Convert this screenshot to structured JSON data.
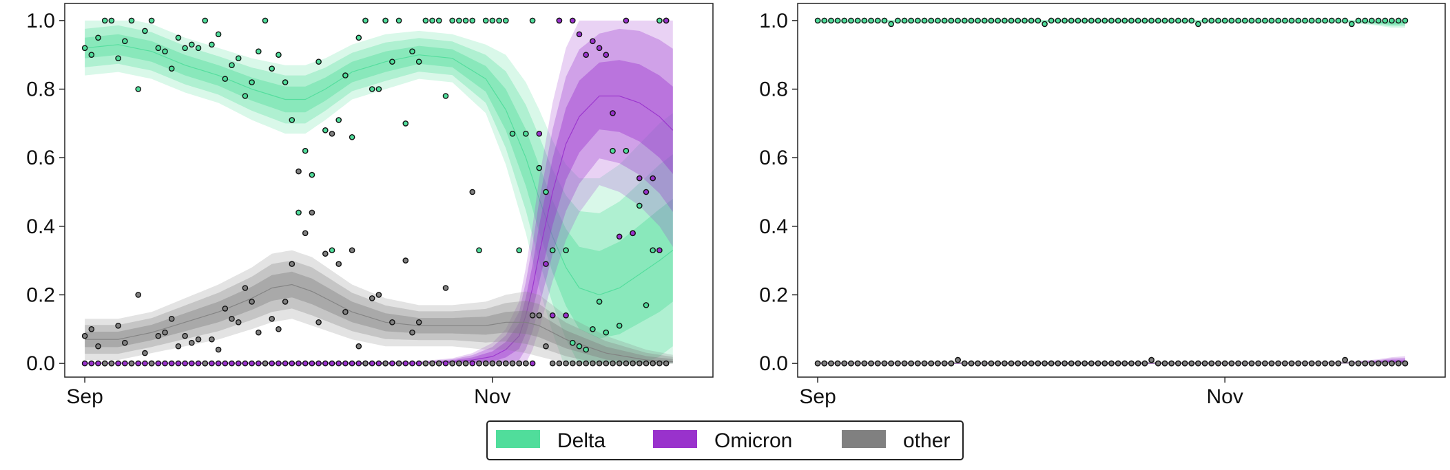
{
  "colors": {
    "Delta": "#50dd9b",
    "Omicron": "#9932cc",
    "other": "#808080",
    "axis": "#222222"
  },
  "legend": {
    "entries": [
      "Delta",
      "Omicron",
      "other"
    ],
    "placement": "bottom-center"
  },
  "chart_data": [
    {
      "type": "line",
      "panel": "left",
      "x_unit": "days since Sep 1",
      "xlim": [
        -3,
        94
      ],
      "ylim": [
        -0.04,
        1.05
      ],
      "yticks": [
        "0.0",
        "0.2",
        "0.4",
        "0.6",
        "0.8",
        "1.0"
      ],
      "xticks": [
        {
          "x": 0,
          "label": "Sep"
        },
        {
          "x": 61,
          "label": "Nov"
        }
      ],
      "grid": false,
      "series": [
        {
          "name": "Delta",
          "x": [
            0,
            5,
            10,
            15,
            20,
            25,
            30,
            33,
            36,
            40,
            45,
            50,
            55,
            60,
            63,
            66,
            68,
            70,
            72,
            74,
            77,
            80,
            83,
            86,
            88
          ],
          "y": [
            0.92,
            0.93,
            0.91,
            0.87,
            0.84,
            0.8,
            0.77,
            0.77,
            0.8,
            0.85,
            0.88,
            0.9,
            0.89,
            0.83,
            0.74,
            0.6,
            0.48,
            0.37,
            0.28,
            0.22,
            0.2,
            0.22,
            0.26,
            0.3,
            0.33
          ],
          "band": [
            0.04,
            0.04,
            0.04,
            0.04,
            0.04,
            0.045,
            0.05,
            0.05,
            0.045,
            0.04,
            0.04,
            0.035,
            0.035,
            0.05,
            0.08,
            0.11,
            0.13,
            0.14,
            0.15,
            0.16,
            0.17,
            0.18,
            0.19,
            0.2,
            0.2
          ],
          "points_x": [
            0,
            1,
            2,
            3,
            4,
            5,
            6,
            7,
            8,
            9,
            10,
            11,
            12,
            13,
            14,
            15,
            16,
            17,
            18,
            19,
            20,
            21,
            22,
            23,
            24,
            25,
            26,
            27,
            28,
            29,
            30,
            31,
            32,
            33,
            34,
            35,
            36,
            37,
            38,
            39,
            40,
            41,
            42,
            43,
            44,
            45,
            46,
            47,
            48,
            49,
            50,
            51,
            52,
            53,
            54,
            55,
            56,
            57,
            58,
            59,
            60,
            61,
            62,
            63,
            64,
            65,
            66,
            67,
            68,
            69,
            70,
            71,
            72,
            73,
            74,
            75,
            76,
            77,
            78,
            79,
            80,
            81,
            82,
            83,
            84,
            85,
            86,
            87
          ],
          "points_y": [
            0.92,
            0.9,
            0.95,
            1.0,
            1.0,
            0.89,
            0.94,
            1.0,
            0.8,
            0.97,
            1.0,
            0.92,
            0.91,
            0.86,
            0.95,
            0.92,
            0.93,
            0.92,
            1.0,
            0.93,
            0.96,
            0.83,
            0.87,
            0.89,
            0.78,
            0.82,
            0.91,
            1.0,
            0.86,
            0.9,
            0.82,
            0.71,
            0.44,
            0.62,
            0.55,
            0.88,
            0.68,
            0.33,
            0.71,
            0.84,
            0.66,
            0.95,
            1.0,
            0.8,
            0.8,
            1.0,
            0.88,
            1.0,
            0.7,
            0.91,
            0.88,
            1.0,
            1.0,
            1.0,
            0.78,
            1.0,
            1.0,
            1.0,
            1.0,
            0.33,
            1.0,
            1.0,
            1.0,
            1.0,
            0.67,
            0.33,
            0.67,
            1.0,
            0.57,
            0.5,
            0.33,
            1.0,
            0.33,
            0.06,
            0.05,
            0.04,
            0.1,
            0.18,
            0.09,
            0.62,
            0.11,
            0.62,
            0.38,
            0.46,
            0.17,
            0.33,
            1.0,
            1.0
          ]
        },
        {
          "name": "Omicron",
          "x": [
            0,
            10,
            20,
            30,
            40,
            50,
            55,
            58,
            61,
            63,
            65,
            66,
            67,
            68,
            70,
            72,
            74,
            77,
            80,
            83,
            86,
            88
          ],
          "y": [
            0.0,
            0.0,
            0.0,
            0.0,
            0.0,
            0.0,
            0.005,
            0.01,
            0.02,
            0.04,
            0.08,
            0.14,
            0.22,
            0.32,
            0.5,
            0.64,
            0.72,
            0.78,
            0.78,
            0.76,
            0.72,
            0.68
          ],
          "band": [
            0.002,
            0.002,
            0.002,
            0.002,
            0.002,
            0.003,
            0.005,
            0.01,
            0.02,
            0.03,
            0.05,
            0.07,
            0.09,
            0.11,
            0.13,
            0.14,
            0.14,
            0.13,
            0.14,
            0.15,
            0.16,
            0.17
          ],
          "points_x": [
            0,
            1,
            2,
            3,
            4,
            5,
            6,
            7,
            8,
            9,
            10,
            11,
            12,
            13,
            14,
            15,
            16,
            17,
            18,
            19,
            20,
            21,
            22,
            23,
            24,
            25,
            26,
            27,
            28,
            29,
            30,
            31,
            32,
            33,
            34,
            35,
            36,
            37,
            38,
            39,
            40,
            41,
            42,
            43,
            44,
            45,
            46,
            47,
            48,
            49,
            50,
            51,
            52,
            53,
            54,
            55,
            56,
            57,
            58,
            59,
            60,
            61,
            62,
            63,
            64,
            65,
            66,
            67,
            68,
            69,
            70,
            71,
            72,
            73,
            74,
            75,
            76,
            77,
            78,
            79,
            80,
            81,
            82,
            83,
            84,
            85,
            86,
            87
          ],
          "points_y": [
            0,
            0,
            0,
            0,
            0,
            0,
            0,
            0,
            0,
            0,
            0,
            0,
            0,
            0,
            0,
            0,
            0,
            0,
            0,
            0,
            0,
            0,
            0,
            0,
            0,
            0,
            0,
            0,
            0,
            0,
            0,
            0,
            0,
            0,
            0,
            0,
            0,
            0,
            0,
            0,
            0,
            0,
            0,
            0,
            0,
            0,
            0,
            0,
            0,
            0,
            0,
            0,
            0,
            0,
            0,
            0,
            0,
            0,
            0,
            0,
            0,
            0,
            0,
            0,
            0,
            0,
            0,
            0,
            0.67,
            0.29,
            0.14,
            1.0,
            0.14,
            1.0,
            0.96,
            0.9,
            0.94,
            0.92,
            0.9,
            0.73,
            0.37,
            1.0,
            0.38,
            0.54,
            0.5,
            0.54,
            0.33,
            1.0
          ]
        },
        {
          "name": "other",
          "x": [
            0,
            5,
            10,
            15,
            20,
            25,
            28,
            31,
            34,
            37,
            40,
            45,
            50,
            55,
            60,
            63,
            66,
            68,
            70,
            72,
            75,
            78,
            81,
            84,
            88
          ],
          "y": [
            0.07,
            0.07,
            0.09,
            0.12,
            0.15,
            0.19,
            0.22,
            0.23,
            0.21,
            0.18,
            0.15,
            0.12,
            0.11,
            0.11,
            0.11,
            0.12,
            0.12,
            0.11,
            0.09,
            0.07,
            0.05,
            0.03,
            0.02,
            0.01,
            0.005
          ],
          "band": [
            0.03,
            0.03,
            0.03,
            0.035,
            0.04,
            0.045,
            0.05,
            0.05,
            0.05,
            0.045,
            0.04,
            0.035,
            0.03,
            0.03,
            0.035,
            0.04,
            0.045,
            0.045,
            0.04,
            0.035,
            0.03,
            0.025,
            0.02,
            0.015,
            0.01
          ],
          "points_x": [
            0,
            1,
            2,
            3,
            4,
            5,
            6,
            7,
            8,
            9,
            10,
            11,
            12,
            13,
            14,
            15,
            16,
            17,
            18,
            19,
            20,
            21,
            22,
            23,
            24,
            25,
            26,
            27,
            28,
            29,
            30,
            31,
            32,
            33,
            34,
            35,
            36,
            37,
            38,
            39,
            40,
            41,
            42,
            43,
            44,
            45,
            46,
            47,
            48,
            49,
            50,
            51,
            52,
            53,
            54,
            55,
            56,
            57,
            58,
            59,
            60,
            61,
            62,
            63,
            64,
            65,
            66,
            67,
            68,
            69,
            70,
            71,
            72,
            73,
            74,
            75,
            76,
            77,
            78,
            79,
            80,
            81,
            82,
            83,
            84,
            85,
            86,
            87
          ],
          "points_y": [
            0.08,
            0.1,
            0.05,
            0.0,
            0.0,
            0.11,
            0.06,
            0.0,
            0.2,
            0.03,
            0.0,
            0.08,
            0.09,
            0.13,
            0.05,
            0.08,
            0.06,
            0.07,
            0.0,
            0.07,
            0.04,
            0.16,
            0.13,
            0.12,
            0.22,
            0.18,
            0.09,
            0.0,
            0.13,
            0.1,
            0.18,
            0.29,
            0.56,
            0.38,
            0.44,
            0.12,
            0.32,
            0.67,
            0.29,
            0.15,
            0.33,
            0.05,
            0.0,
            0.19,
            0.2,
            0.0,
            0.12,
            0.0,
            0.3,
            0.09,
            0.12,
            0.0,
            0.0,
            0.0,
            0.22,
            0.0,
            0.0,
            0.0,
            0.5,
            0.0,
            0.0,
            0.0,
            0.0,
            0.0,
            0.0,
            0.0,
            0.0,
            0.14,
            0.14,
            0.05,
            0.0,
            0.0,
            0.0,
            0.0,
            0.0,
            0.0,
            0.0,
            0.0,
            0.0,
            0.0,
            0.0,
            0.0,
            0.0,
            0.0,
            0.0,
            0.0,
            0.0,
            0.0
          ]
        }
      ]
    },
    {
      "type": "line",
      "panel": "right",
      "x_unit": "days since Sep 1",
      "xlim": [
        -3,
        94
      ],
      "ylim": [
        -0.04,
        1.05
      ],
      "yticks": [
        "0.0",
        "0.2",
        "0.4",
        "0.6",
        "0.8",
        "1.0"
      ],
      "xticks": [
        {
          "x": 0,
          "label": "Sep"
        },
        {
          "x": 61,
          "label": "Nov"
        }
      ],
      "grid": false,
      "series": [
        {
          "name": "Delta",
          "x": [
            0,
            20,
            40,
            60,
            80,
            84,
            86,
            88
          ],
          "y": [
            0.999,
            0.999,
            0.999,
            0.999,
            0.999,
            0.995,
            0.993,
            0.995
          ],
          "band": [
            0.003,
            0.003,
            0.003,
            0.003,
            0.003,
            0.005,
            0.007,
            0.008
          ],
          "points_x": "all-days-0-88",
          "points_y": [
            1.0,
            0.99,
            0.98,
            0.99,
            1.0
          ]
        },
        {
          "name": "Omicron",
          "x": [
            0,
            20,
            40,
            60,
            80,
            84,
            86,
            88
          ],
          "y": [
            0.0,
            0.0,
            0.0,
            0.0,
            0.001,
            0.004,
            0.006,
            0.005
          ],
          "band": [
            0.001,
            0.001,
            0.001,
            0.001,
            0.002,
            0.004,
            0.006,
            0.008
          ],
          "points_x": "all-days-0-88",
          "points_y": [
            0.0,
            0.01
          ]
        },
        {
          "name": "other",
          "x": [
            0,
            20,
            40,
            60,
            80,
            88
          ],
          "y": [
            0.001,
            0.001,
            0.001,
            0.001,
            0.001,
            0.001
          ],
          "band": [
            0.002,
            0.002,
            0.002,
            0.002,
            0.002,
            0.002
          ],
          "points_x": "all-days-0-88",
          "points_y": [
            0.0,
            0.01
          ]
        }
      ]
    }
  ]
}
